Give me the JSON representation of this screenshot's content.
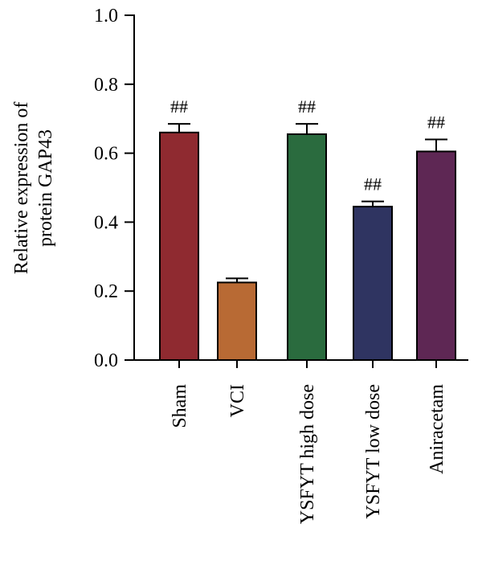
{
  "chart_data": {
    "type": "bar",
    "ylabel_lines": [
      "Relative expression of",
      "protein GAP43"
    ],
    "xlabel": "",
    "ylim": [
      0,
      1.0
    ],
    "yticks": [
      "0.0",
      "0.2",
      "0.4",
      "0.6",
      "0.8",
      "1.0"
    ],
    "categories": [
      "Sham",
      "VCI",
      "YSFYT high dose",
      "YSFYT low dose",
      "Aniracetam"
    ],
    "values": [
      0.66,
      0.225,
      0.655,
      0.445,
      0.605
    ],
    "errors": [
      0.025,
      0.012,
      0.03,
      0.015,
      0.035
    ],
    "annotations": [
      "##",
      "",
      "##",
      "##",
      "##"
    ],
    "colors": [
      "#8f2a30",
      "#b86a34",
      "#2a6b3e",
      "#2f3461",
      "#5e2754"
    ],
    "grid": false,
    "legend": "none"
  }
}
